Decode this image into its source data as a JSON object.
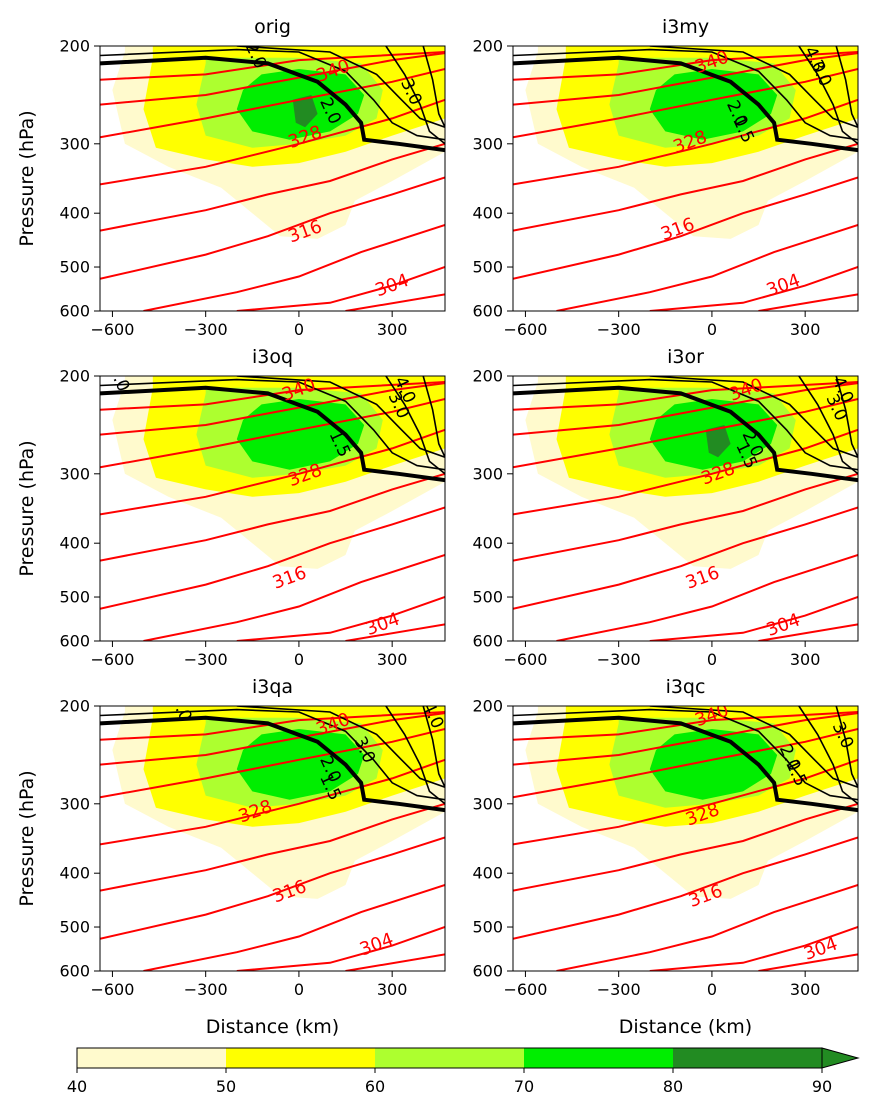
{
  "figure": {
    "ylabel": "Pressure (hPa)",
    "xlabel": "Distance (km)"
  },
  "colorbar": {
    "ticks": [
      "40",
      "50",
      "60",
      "70",
      "80",
      "90"
    ],
    "colors": [
      "#fffacd",
      "#ffff00",
      "#adff2f",
      "#00ee00",
      "#228b22"
    ],
    "extend": "max"
  },
  "chart_data": [
    {
      "type": "contour",
      "title": "orig",
      "xlim": [
        -640,
        470
      ],
      "ylim": [
        600,
        200
      ],
      "yscale": "log",
      "xticks": [
        -600,
        -300,
        0,
        300
      ],
      "xtick_labels": [
        "−600",
        "−300",
        "0",
        "300"
      ],
      "yticks": [
        200,
        300,
        400,
        500,
        600
      ],
      "theta_labels": [
        {
          "text": "340",
          "x": 110,
          "y": 222
        },
        {
          "text": "328",
          "x": 20,
          "y": 292
        },
        {
          "text": "316",
          "x": 20,
          "y": 432
        },
        {
          "text": "304",
          "x": 300,
          "y": 540
        }
      ],
      "pv_labels": [
        {
          "text": "2.0",
          "x": 100,
          "y": 262
        },
        {
          "text": "3.0",
          "x": 360,
          "y": 242
        },
        {
          "text": "2.0",
          "x": -140,
          "y": 208
        }
      ],
      "filled_max": "80-90"
    },
    {
      "type": "contour",
      "title": "i3my",
      "xlim": [
        -640,
        470
      ],
      "ylim": [
        600,
        200
      ],
      "yscale": "log",
      "xticks": [
        -600,
        -300,
        0,
        300
      ],
      "xtick_labels": [
        "−600",
        "−300",
        "0",
        "300"
      ],
      "yticks": [
        200,
        300,
        400,
        500,
        600
      ],
      "theta_labels": [
        {
          "text": "340",
          "x": 0,
          "y": 214
        },
        {
          "text": "328",
          "x": -70,
          "y": 298
        },
        {
          "text": "316",
          "x": -110,
          "y": 428
        },
        {
          "text": "304",
          "x": 230,
          "y": 540
        }
      ],
      "pv_labels": [
        {
          "text": "2.0",
          "x": 80,
          "y": 265
        },
        {
          "text": "1.5",
          "x": 100,
          "y": 283
        },
        {
          "text": "3.0",
          "x": 350,
          "y": 224
        },
        {
          "text": "4.0",
          "x": 330,
          "y": 212
        }
      ],
      "filled_max": "70-80"
    },
    {
      "type": "contour",
      "title": "i3oq",
      "xlim": [
        -640,
        470
      ],
      "ylim": [
        600,
        200
      ],
      "yscale": "log",
      "xticks": [
        -600,
        -300,
        0,
        300
      ],
      "xtick_labels": [
        "−600",
        "−300",
        "0",
        "300"
      ],
      "yticks": [
        200,
        300,
        400,
        500,
        600
      ],
      "theta_labels": [
        {
          "text": "340",
          "x": 0,
          "y": 212
        },
        {
          "text": "328",
          "x": 20,
          "y": 302
        },
        {
          "text": "316",
          "x": -30,
          "y": 462
        },
        {
          "text": "304",
          "x": 270,
          "y": 560
        }
      ],
      "pv_labels": [
        {
          "text": "1.5",
          "x": 130,
          "y": 265
        },
        {
          "text": "3.0",
          "x": 320,
          "y": 226
        },
        {
          "text": "4.0",
          "x": 340,
          "y": 212
        },
        {
          "text": "2.0",
          "x": -580,
          "y": 202
        }
      ],
      "filled_max": "70-80"
    },
    {
      "type": "contour",
      "title": "i3or",
      "xlim": [
        -640,
        470
      ],
      "ylim": [
        600,
        200
      ],
      "yscale": "log",
      "xticks": [
        -600,
        -300,
        0,
        300
      ],
      "xtick_labels": [
        "−600",
        "−300",
        "0",
        "300"
      ],
      "yticks": [
        200,
        300,
        400,
        500,
        600
      ],
      "theta_labels": [
        {
          "text": "340",
          "x": 110,
          "y": 212
        },
        {
          "text": "328",
          "x": 20,
          "y": 300
        },
        {
          "text": "316",
          "x": -30,
          "y": 462
        },
        {
          "text": "304",
          "x": 230,
          "y": 562
        }
      ],
      "pv_labels": [
        {
          "text": "2.0",
          "x": 130,
          "y": 265
        },
        {
          "text": "1.5",
          "x": 110,
          "y": 278
        },
        {
          "text": "3.0",
          "x": 400,
          "y": 228
        },
        {
          "text": "4.0",
          "x": 420,
          "y": 212
        }
      ],
      "filled_max": "80-90"
    },
    {
      "type": "contour",
      "title": "i3qa",
      "xlim": [
        -640,
        470
      ],
      "ylim": [
        600,
        200
      ],
      "yscale": "log",
      "xticks": [
        -600,
        -300,
        0,
        300
      ],
      "xtick_labels": [
        "−600",
        "−300",
        "0",
        "300"
      ],
      "yticks": [
        200,
        300,
        400,
        500,
        600
      ],
      "theta_labels": [
        {
          "text": "340",
          "x": 110,
          "y": 216
        },
        {
          "text": "328",
          "x": -140,
          "y": 310
        },
        {
          "text": "316",
          "x": -30,
          "y": 432
        },
        {
          "text": "304",
          "x": 250,
          "y": 538
        }
      ],
      "pv_labels": [
        {
          "text": "2.0",
          "x": 100,
          "y": 260
        },
        {
          "text": "1.5",
          "x": 100,
          "y": 280
        },
        {
          "text": "3.0",
          "x": 210,
          "y": 240
        },
        {
          "text": "4.0",
          "x": 430,
          "y": 208
        },
        {
          "text": "2.0",
          "x": -380,
          "y": 202
        }
      ],
      "filled_max": "70-80"
    },
    {
      "type": "contour",
      "title": "i3qc",
      "xlim": [
        -640,
        470
      ],
      "ylim": [
        600,
        200
      ],
      "yscale": "log",
      "xticks": [
        -600,
        -300,
        0,
        300
      ],
      "xtick_labels": [
        "−600",
        "−300",
        "0",
        "300"
      ],
      "yticks": [
        200,
        300,
        400,
        500,
        600
      ],
      "theta_labels": [
        {
          "text": "340",
          "x": 0,
          "y": 208
        },
        {
          "text": "328",
          "x": -30,
          "y": 314
        },
        {
          "text": "316",
          "x": -20,
          "y": 440
        },
        {
          "text": "304",
          "x": 350,
          "y": 548
        }
      ],
      "pv_labels": [
        {
          "text": "2.0",
          "x": 250,
          "y": 248
        },
        {
          "text": "1.5",
          "x": 270,
          "y": 264
        },
        {
          "text": "3.0",
          "x": 420,
          "y": 226
        }
      ],
      "filled_max": "70-80"
    }
  ]
}
